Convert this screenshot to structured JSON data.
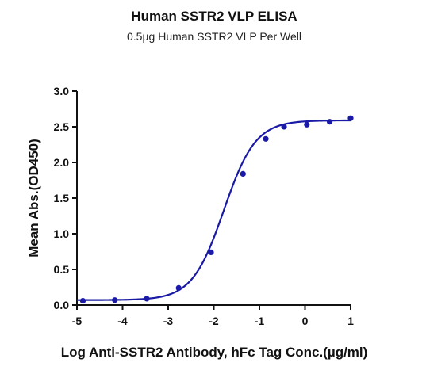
{
  "chart_data": {
    "type": "scatter",
    "title": "Human SSTR2 VLP ELISA",
    "subtitle": "0.5µg Human SSTR2 VLP Per Well",
    "xlabel": "Log Anti-SSTR2 Antibody, hFc Tag Conc.(µg/ml)",
    "ylabel": "Mean Abs.(OD450)",
    "xlim": [
      -5,
      1
    ],
    "ylim": [
      0,
      3.0
    ],
    "x_ticks": [
      "-5",
      "-4",
      "-3",
      "-2",
      "-1",
      "0",
      "1"
    ],
    "y_ticks": [
      "0.0",
      "0.5",
      "1.0",
      "1.5",
      "2.0",
      "2.5",
      "3.0"
    ],
    "grid": false,
    "legend": "none",
    "series": [
      {
        "points": [
          {
            "x": -4.87,
            "y": 0.06
          },
          {
            "x": -4.17,
            "y": 0.07
          },
          {
            "x": -3.47,
            "y": 0.09
          },
          {
            "x": -2.77,
            "y": 0.24
          },
          {
            "x": -2.06,
            "y": 0.74
          },
          {
            "x": -1.36,
            "y": 1.84
          },
          {
            "x": -0.86,
            "y": 2.33
          },
          {
            "x": -0.46,
            "y": 2.5
          },
          {
            "x": 0.04,
            "y": 2.53
          },
          {
            "x": 0.54,
            "y": 2.57
          },
          {
            "x": 1.0,
            "y": 2.62
          }
        ],
        "fit": {
          "model": "4PL",
          "bottom": 0.07,
          "top": 2.59,
          "logEC50": -1.78,
          "hill": 1.25
        }
      }
    ],
    "colors": {
      "series": "#1a1aa6",
      "axis": "#111111"
    }
  }
}
